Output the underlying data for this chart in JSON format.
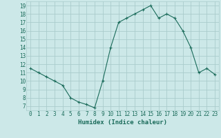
{
  "x": [
    0,
    1,
    2,
    3,
    4,
    5,
    6,
    7,
    8,
    9,
    10,
    11,
    12,
    13,
    14,
    15,
    16,
    17,
    18,
    19,
    20,
    21,
    22,
    23
  ],
  "y": [
    11.5,
    11.0,
    10.5,
    10.0,
    9.5,
    8.0,
    7.5,
    7.2,
    6.8,
    10.0,
    14.0,
    17.0,
    17.5,
    18.0,
    18.5,
    19.0,
    17.5,
    18.0,
    17.5,
    16.0,
    14.0,
    11.0,
    11.5,
    10.8
  ],
  "xlabel": "Humidex (Indice chaleur)",
  "line_color": "#1a6b5a",
  "marker": "+",
  "marker_size": 3.5,
  "marker_linewidth": 0.8,
  "bg_color": "#cce8e8",
  "grid_color": "#aacccc",
  "xlim": [
    -0.5,
    23.5
  ],
  "ylim_min": 6.5,
  "ylim_max": 19.5,
  "yticks": [
    7,
    8,
    9,
    10,
    11,
    12,
    13,
    14,
    15,
    16,
    17,
    18,
    19
  ],
  "xticks": [
    0,
    1,
    2,
    3,
    4,
    5,
    6,
    7,
    8,
    9,
    10,
    11,
    12,
    13,
    14,
    15,
    16,
    17,
    18,
    19,
    20,
    21,
    22,
    23
  ],
  "tick_fontsize": 5.5,
  "xlabel_fontsize": 6.5,
  "linewidth": 0.8
}
